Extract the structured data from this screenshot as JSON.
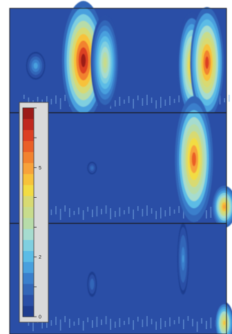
{
  "chart_data": {
    "type": "heatmap",
    "panels": [
      {
        "blobs": [
          {
            "x": 0.34,
            "y": 0.5,
            "sx": 0.045,
            "sy": 0.3,
            "value": 7.0
          },
          {
            "x": 0.44,
            "y": 0.52,
            "sx": 0.03,
            "sy": 0.24,
            "value": 3.6
          },
          {
            "x": 0.12,
            "y": 0.55,
            "sx": 0.02,
            "sy": 0.07,
            "value": 1.8
          },
          {
            "x": 0.84,
            "y": 0.55,
            "sx": 0.03,
            "sy": 0.27,
            "value": 4.8
          },
          {
            "x": 0.91,
            "y": 0.52,
            "sx": 0.035,
            "sy": 0.28,
            "value": 5.9
          }
        ]
      },
      {
        "blobs": [
          {
            "x": 0.85,
            "y": 0.42,
            "sx": 0.04,
            "sy": 0.3,
            "value": 5.6
          },
          {
            "x": 0.99,
            "y": 0.85,
            "sx": 0.025,
            "sy": 0.1,
            "value": 5.0
          },
          {
            "x": 0.38,
            "y": 0.5,
            "sx": 0.01,
            "sy": 0.03,
            "value": 1.2
          }
        ]
      },
      {
        "blobs": [
          {
            "x": 0.8,
            "y": 0.32,
            "sx": 0.012,
            "sy": 0.17,
            "value": 1.6
          },
          {
            "x": 0.99,
            "y": 0.9,
            "sx": 0.02,
            "sy": 0.1,
            "value": 4.5
          },
          {
            "x": 0.38,
            "y": 0.55,
            "sx": 0.01,
            "sy": 0.06,
            "value": 1.1
          }
        ]
      }
    ],
    "colorbar": {
      "range": [
        0,
        7
      ],
      "ticks": [
        {
          "value": 0,
          "label": "0"
        },
        {
          "value": 2,
          "label": "2"
        },
        {
          "value": 5,
          "label": "5"
        }
      ],
      "colors": [
        "#1f3d8f",
        "#2a4fa6",
        "#3366b8",
        "#3a7fcc",
        "#48a0de",
        "#5bbce6",
        "#7fcfe0",
        "#a6dccf",
        "#b7dca9",
        "#c8dc8c",
        "#d8da72",
        "#f2dc43",
        "#f7c23a",
        "#f7a23a",
        "#f2822f",
        "#ea5f27",
        "#dc4023",
        "#c0281f",
        "#9c1a18"
      ],
      "background": "#d9d9d9"
    },
    "background_color": "#2a4ea6",
    "stripe_color": "#7fb0e6"
  }
}
